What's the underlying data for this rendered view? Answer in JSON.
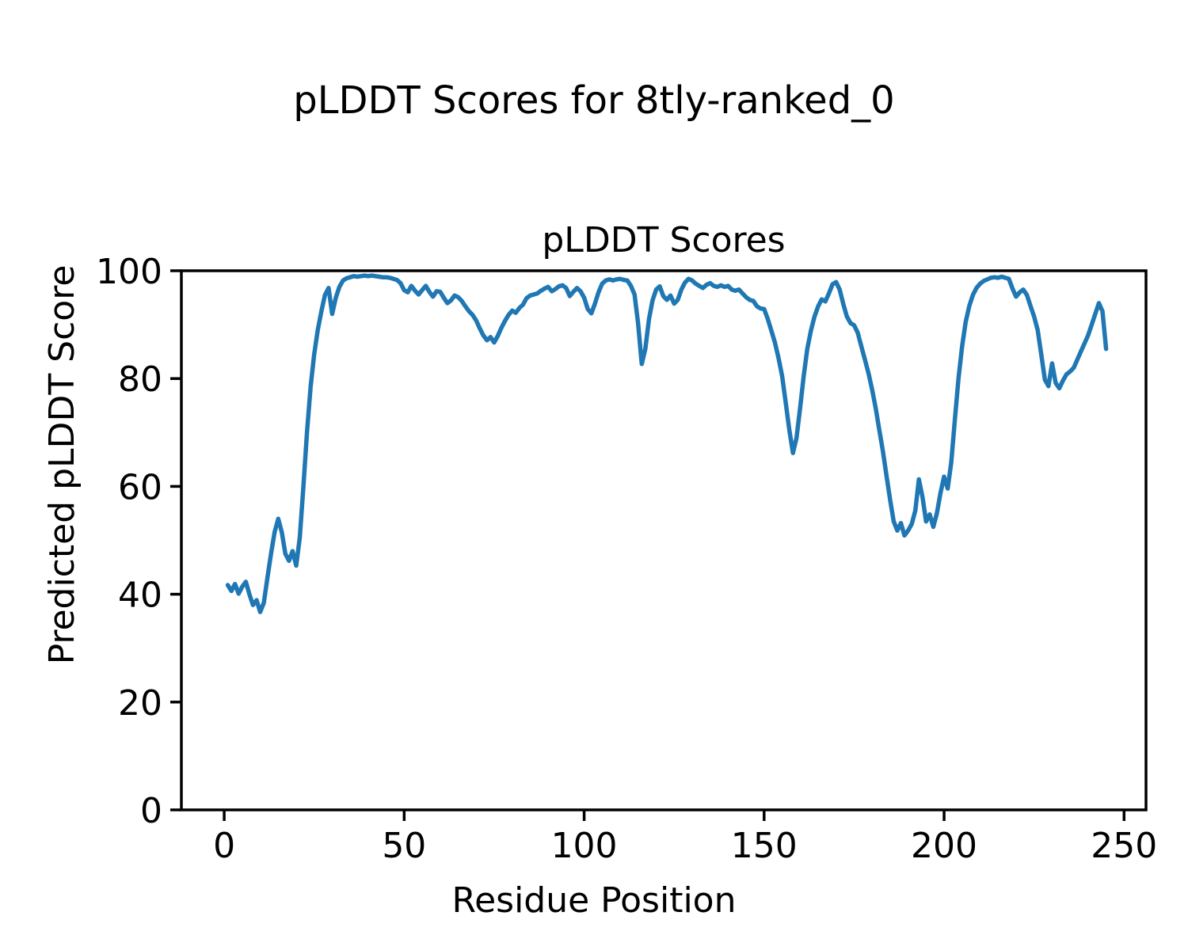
{
  "figure": {
    "suptitle": "pLDDT Scores for 8tly-ranked_0"
  },
  "axes": {
    "title": "pLDDT Scores",
    "xlabel": "Residue Position",
    "ylabel": "Predicted pLDDT Score",
    "xtick_labels": [
      "0",
      "50",
      "100",
      "150",
      "200",
      "250"
    ],
    "xtick_values": [
      0,
      50,
      100,
      150,
      200,
      250
    ],
    "ytick_labels": [
      "0",
      "20",
      "40",
      "60",
      "80",
      "100"
    ],
    "ytick_values": [
      0,
      20,
      40,
      60,
      80,
      100
    ],
    "xlim": [
      -11.9,
      256.1
    ],
    "ylim": [
      0,
      100
    ],
    "grid": false,
    "legend": "none"
  },
  "chart_data": {
    "type": "line",
    "title": "pLDDT Scores",
    "xlabel": "Residue Position",
    "ylabel": "Predicted pLDDT Score",
    "series_name": "pLDDT",
    "line_color": "#1f77b4",
    "background_color": "#ffffff",
    "x_start": 1,
    "x_step": 1,
    "values": [
      41.7,
      40.6,
      41.9,
      40.1,
      41.4,
      42.3,
      40.0,
      38.0,
      38.9,
      36.7,
      38.4,
      43.0,
      47.5,
      51.5,
      54.0,
      51.5,
      47.5,
      46.2,
      48.0,
      45.3,
      50.5,
      60.0,
      70.0,
      78.5,
      84.5,
      89.0,
      92.5,
      95.5,
      96.8,
      92.0,
      95.0,
      97.0,
      98.2,
      98.6,
      98.8,
      99.0,
      98.9,
      99.0,
      99.1,
      99.0,
      99.1,
      99.0,
      98.9,
      98.8,
      98.8,
      98.7,
      98.5,
      98.3,
      97.7,
      96.4,
      96.0,
      97.2,
      96.3,
      95.6,
      96.4,
      97.2,
      96.1,
      95.2,
      96.2,
      96.1,
      95.0,
      94.0,
      94.5,
      95.4,
      95.1,
      94.4,
      93.4,
      92.5,
      91.8,
      90.8,
      89.3,
      88.0,
      87.1,
      87.7,
      86.7,
      87.9,
      89.4,
      90.7,
      91.8,
      92.6,
      92.2,
      93.1,
      93.7,
      94.9,
      95.4,
      95.6,
      95.8,
      96.3,
      96.7,
      97.0,
      96.2,
      96.6,
      97.1,
      97.3,
      96.8,
      95.3,
      96.1,
      96.8,
      96.2,
      95.0,
      92.9,
      92.1,
      93.9,
      96.0,
      97.6,
      98.2,
      98.4,
      98.2,
      98.4,
      98.5,
      98.3,
      98.2,
      97.2,
      95.6,
      90.2,
      82.7,
      85.5,
      91.0,
      94.5,
      96.5,
      97.1,
      95.3,
      94.6,
      95.4,
      93.9,
      94.6,
      96.5,
      97.8,
      98.5,
      98.2,
      97.6,
      97.2,
      96.8,
      97.4,
      97.7,
      97.2,
      97.0,
      97.3,
      97.0,
      97.2,
      96.5,
      96.3,
      96.5,
      95.8,
      95.1,
      94.6,
      94.4,
      93.4,
      93.0,
      92.9,
      91.1,
      88.9,
      86.7,
      83.8,
      80.5,
      75.5,
      70.5,
      66.2,
      69.0,
      74.5,
      80.5,
      85.5,
      88.9,
      91.5,
      93.4,
      94.7,
      94.3,
      95.8,
      97.5,
      97.9,
      96.5,
      93.8,
      91.5,
      90.3,
      89.9,
      88.5,
      86.0,
      83.5,
      81.0,
      78.0,
      74.5,
      70.5,
      66.5,
      62.0,
      57.5,
      53.5,
      51.8,
      53.2,
      50.9,
      51.8,
      53.0,
      55.5,
      61.3,
      58.0,
      53.5,
      54.8,
      52.5,
      55.0,
      58.8,
      61.8,
      59.6,
      64.5,
      72.5,
      80.0,
      86.0,
      90.5,
      93.5,
      95.5,
      96.8,
      97.6,
      98.1,
      98.4,
      98.7,
      98.8,
      98.7,
      98.9,
      98.7,
      98.5,
      96.7,
      95.2,
      96.0,
      96.5,
      95.5,
      93.5,
      91.5,
      89.0,
      84.5,
      79.8,
      78.6,
      82.8,
      79.2,
      78.2,
      79.6,
      80.8,
      81.3,
      82.0,
      83.5,
      85.0,
      86.5,
      88.0,
      90.0,
      92.0,
      94.0,
      92.5,
      85.5
    ]
  }
}
